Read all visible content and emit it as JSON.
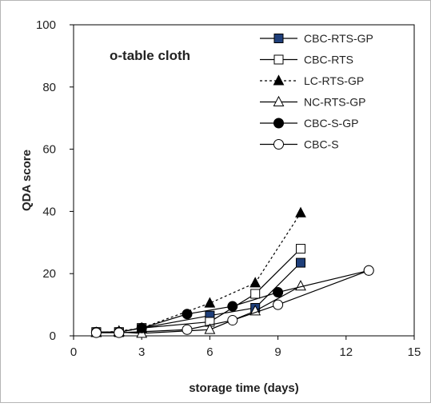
{
  "chart_data": {
    "type": "line",
    "title": "o-table cloth",
    "xlabel": "storage time (days)",
    "ylabel": "QDA score",
    "xlim": [
      0,
      15
    ],
    "ylim": [
      0,
      100
    ],
    "xticks": [
      0,
      3,
      6,
      9,
      12,
      15
    ],
    "yticks": [
      0,
      20,
      40,
      60,
      80,
      100
    ],
    "grid": false,
    "legend_position": "top-right",
    "series": [
      {
        "name": "CBC-RTS-GP",
        "x": [
          1,
          2,
          3,
          6,
          8,
          10
        ],
        "y": [
          1.2,
          1.2,
          2.5,
          6.5,
          9,
          23.5
        ],
        "marker": "square",
        "fill": "#1f3f7a",
        "line": "solid"
      },
      {
        "name": "CBC-RTS",
        "x": [
          1,
          2,
          3,
          6,
          8,
          10
        ],
        "y": [
          1.2,
          1.2,
          2.5,
          4.5,
          13.5,
          28
        ],
        "marker": "square",
        "fill": "#ffffff",
        "line": "solid"
      },
      {
        "name": "LC-RTS-GP",
        "x": [
          1,
          2,
          3,
          6,
          8,
          10
        ],
        "y": [
          1,
          1.5,
          2.5,
          10.5,
          17,
          39.5
        ],
        "marker": "triangle",
        "fill": "#000000",
        "line": "dashed"
      },
      {
        "name": "NC-RTS-GP",
        "x": [
          1,
          2,
          3,
          6,
          8,
          10
        ],
        "y": [
          1,
          1.2,
          0.8,
          2,
          8,
          16
        ],
        "marker": "triangle",
        "fill": "#ffffff",
        "line": "solid"
      },
      {
        "name": "CBC-S-GP",
        "x": [
          1,
          2,
          3,
          5,
          7,
          9,
          13
        ],
        "y": [
          1.2,
          1.2,
          2.5,
          7,
          9.5,
          14,
          21
        ],
        "marker": "circle",
        "fill": "#000000",
        "line": "solid"
      },
      {
        "name": "CBC-S",
        "x": [
          1,
          2,
          5,
          7,
          9,
          13
        ],
        "y": [
          1,
          1,
          2,
          5,
          10,
          21
        ],
        "marker": "circle",
        "fill": "#ffffff",
        "line": "solid"
      }
    ]
  }
}
